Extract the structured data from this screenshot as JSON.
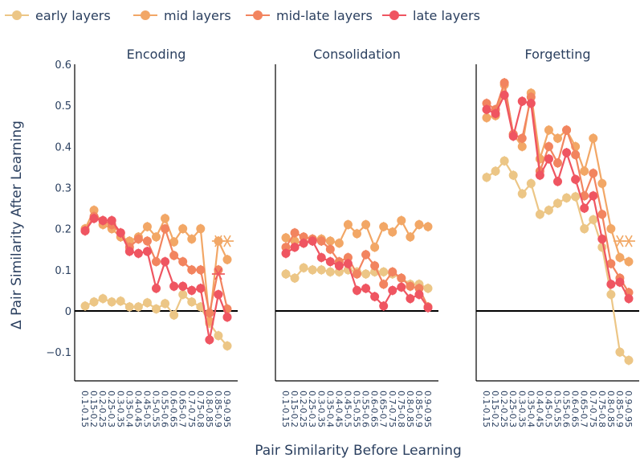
{
  "chart_data": {
    "type": "line",
    "ylabel": "Δ Pair Similarity After Learning",
    "xlabel": "Pair Similarity Before Learning",
    "ylim": [
      -0.17,
      0.6
    ],
    "yticks": [
      -0.1,
      0,
      0.1,
      0.2,
      0.3,
      0.4,
      0.5,
      0.6
    ],
    "ytick_labels": [
      "−0.1",
      "0",
      "0.1",
      "0.2",
      "0.3",
      "0.4",
      "0.5",
      "0.6"
    ],
    "categories": [
      "0.1-0.15",
      "0.15-0.2",
      "0.2-0.25",
      "0.25-0.3",
      "0.3-0.35",
      "0.35-0.4",
      "0.4-0.45",
      "0.45-0.5",
      "0.5-0.55",
      "0.55-0.6",
      "0.6-0.65",
      "0.65-0.7",
      "0.7-0.75",
      "0.75-0.8",
      "0.8-0.85",
      "0.85-0.9",
      "0.9-0.95"
    ],
    "legend": [
      {
        "name": "early layers",
        "color": "#ecc686"
      },
      {
        "name": "mid layers",
        "color": "#f2a766"
      },
      {
        "name": "mid-late layers",
        "color": "#f2845f"
      },
      {
        "name": "late layers",
        "color": "#ef5561"
      }
    ],
    "panels": [
      {
        "title": "Encoding",
        "series": [
          {
            "name": "early layers",
            "color": "#ecc686",
            "values": [
              0.012,
              0.022,
              0.03,
              0.022,
              0.024,
              0.01,
              0.01,
              0.02,
              0.005,
              0.018,
              -0.01,
              0.04,
              0.022,
              0.01,
              -0.03,
              -0.06,
              -0.085
            ],
            "star": [
              0.17,
              0.17
            ]
          },
          {
            "name": "mid layers",
            "color": "#f2a766",
            "values": [
              0.2,
              0.245,
              0.21,
              0.2,
              0.18,
              0.17,
              0.18,
              0.205,
              0.18,
              0.225,
              0.168,
              0.2,
              0.175,
              0.2,
              -0.025,
              0.17,
              0.125
            ],
            "star": [
              0.17,
              0.17
            ]
          },
          {
            "name": "mid-late layers",
            "color": "#f2845f",
            "values": [
              0.195,
              0.23,
              0.22,
              0.21,
              0.19,
              0.155,
              0.175,
              0.17,
              0.12,
              0.2,
              0.135,
              0.12,
              0.1,
              0.1,
              -0.005,
              0.1,
              0.005
            ],
            "star": [
              0.09,
              null
            ]
          },
          {
            "name": "late layers",
            "color": "#ef5561",
            "values": [
              0.195,
              0.225,
              0.22,
              0.22,
              0.19,
              0.145,
              0.14,
              0.145,
              0.055,
              0.12,
              0.06,
              0.06,
              0.05,
              0.055,
              -0.07,
              0.04,
              -0.015
            ],
            "star": [
              0.09,
              null
            ]
          }
        ]
      },
      {
        "title": "Consolidation",
        "series": [
          {
            "name": "early layers",
            "color": "#ecc686",
            "values": [
              0.09,
              0.08,
              0.105,
              0.1,
              0.1,
              0.095,
              0.095,
              0.1,
              0.095,
              0.09,
              0.095,
              0.095,
              0.09,
              0.08,
              0.065,
              0.065,
              0.055
            ]
          },
          {
            "name": "mid layers",
            "color": "#f2a766",
            "values": [
              0.178,
              0.17,
              0.165,
              0.175,
              0.175,
              0.17,
              0.165,
              0.21,
              0.188,
              0.21,
              0.155,
              0.205,
              0.192,
              0.22,
              0.18,
              0.21,
              0.205
            ]
          },
          {
            "name": "mid-late layers",
            "color": "#f2845f",
            "values": [
              0.155,
              0.19,
              0.18,
              0.175,
              0.17,
              0.15,
              0.12,
              0.13,
              0.09,
              0.137,
              0.11,
              0.065,
              0.095,
              0.08,
              0.06,
              0.055,
              0.01
            ]
          },
          {
            "name": "late layers",
            "color": "#ef5561",
            "values": [
              0.14,
              0.155,
              0.165,
              0.17,
              0.13,
              0.12,
              0.11,
              0.115,
              0.05,
              0.055,
              0.035,
              0.012,
              0.05,
              0.058,
              0.03,
              0.04,
              0.008
            ]
          }
        ]
      },
      {
        "title": "Forgetting",
        "series": [
          {
            "name": "early layers",
            "color": "#ecc686",
            "values": [
              0.325,
              0.34,
              0.365,
              0.33,
              0.285,
              0.31,
              0.235,
              0.245,
              0.262,
              0.275,
              0.278,
              0.2,
              0.222,
              0.155,
              0.04,
              -0.1,
              -0.12
            ],
            "star": [
              0.17,
              0.17
            ]
          },
          {
            "name": "mid layers",
            "color": "#f2a766",
            "values": [
              0.47,
              0.475,
              0.55,
              0.43,
              0.4,
              0.53,
              0.37,
              0.44,
              0.42,
              0.44,
              0.4,
              0.34,
              0.42,
              0.31,
              0.2,
              0.13,
              0.12
            ],
            "star": [
              0.17,
              0.17
            ]
          },
          {
            "name": "mid-late layers",
            "color": "#f2845f",
            "values": [
              0.505,
              0.49,
              0.555,
              0.43,
              0.42,
              0.52,
              0.34,
              0.4,
              0.36,
              0.44,
              0.38,
              0.28,
              0.335,
              0.235,
              0.115,
              0.08,
              0.045
            ]
          },
          {
            "name": "late layers",
            "color": "#ef5561",
            "values": [
              0.49,
              0.48,
              0.525,
              0.425,
              0.51,
              0.505,
              0.33,
              0.37,
              0.315,
              0.385,
              0.32,
              0.25,
              0.28,
              0.175,
              0.065,
              0.07,
              0.03
            ]
          }
        ]
      }
    ]
  }
}
